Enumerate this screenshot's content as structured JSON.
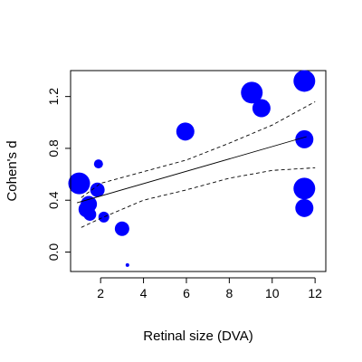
{
  "chart_data": {
    "type": "scatter",
    "title": "",
    "xlabel": "Retinal size (DVA)",
    "ylabel": "Cohen's d",
    "xlim": [
      0.6,
      12.5
    ],
    "ylim": [
      -0.15,
      1.4
    ],
    "xticks": [
      2,
      4,
      6,
      8,
      10,
      12
    ],
    "yticks": [
      0.0,
      0.4,
      0.8,
      1.2
    ],
    "xtick_labels": [
      "2",
      "4",
      "6",
      "8",
      "10",
      "12"
    ],
    "ytick_labels": [
      "0.0",
      "0.4",
      "0.8",
      "1.2"
    ],
    "grid": false,
    "legend": "none",
    "point_color": "#0000ff",
    "points": [
      {
        "x": 1.0,
        "y": 0.53,
        "weight": 12
      },
      {
        "x": 1.35,
        "y": 0.33,
        "weight": 9
      },
      {
        "x": 1.45,
        "y": 0.37,
        "weight": 9
      },
      {
        "x": 1.5,
        "y": 0.29,
        "weight": 7
      },
      {
        "x": 1.85,
        "y": 0.48,
        "weight": 8
      },
      {
        "x": 1.9,
        "y": 0.68,
        "weight": 5
      },
      {
        "x": 2.15,
        "y": 0.27,
        "weight": 6
      },
      {
        "x": 3.0,
        "y": 0.18,
        "weight": 8
      },
      {
        "x": 3.25,
        "y": -0.1,
        "weight": 2
      },
      {
        "x": 5.95,
        "y": 0.93,
        "weight": 10
      },
      {
        "x": 9.05,
        "y": 1.23,
        "weight": 12
      },
      {
        "x": 9.5,
        "y": 1.11,
        "weight": 10
      },
      {
        "x": 11.5,
        "y": 1.32,
        "weight": 12
      },
      {
        "x": 11.5,
        "y": 0.87,
        "weight": 10
      },
      {
        "x": 11.5,
        "y": 0.49,
        "weight": 12
      },
      {
        "x": 11.5,
        "y": 0.34,
        "weight": 10
      }
    ],
    "fit_line": {
      "x": [
        0.9,
        11.6
      ],
      "y": [
        0.38,
        0.89
      ]
    },
    "ci_upper": {
      "x": [
        1.1,
        2.0,
        4.0,
        6.0,
        8.0,
        10.0,
        12.0
      ],
      "y": [
        0.42,
        0.53,
        0.62,
        0.71,
        0.84,
        0.98,
        1.16
      ]
    },
    "ci_lower": {
      "x": [
        1.1,
        2.0,
        4.0,
        6.0,
        8.0,
        10.0,
        12.0
      ],
      "y": [
        0.19,
        0.26,
        0.4,
        0.48,
        0.57,
        0.63,
        0.65
      ]
    }
  }
}
